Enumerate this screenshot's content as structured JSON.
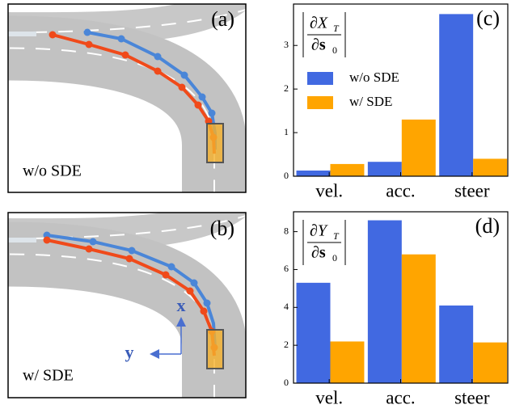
{
  "panels": [
    {
      "label": "(a)",
      "caption": "w/o SDE"
    },
    {
      "label": "(b)",
      "caption": "w/ SDE",
      "axis_x": "x",
      "axis_y": "y"
    }
  ],
  "chart_data": [
    {
      "type": "bar",
      "panel_label": "(c)",
      "ylabel": {
        "num": "∂X",
        "num_sub": "T",
        "den": "∂s",
        "den_sub": "0"
      },
      "categories": [
        "vel.",
        "acc.",
        "steer"
      ],
      "series": [
        {
          "name": "w/o SDE",
          "color": "#4169e1",
          "values": [
            0.13,
            0.33,
            3.72
          ]
        },
        {
          "name": "w/ SDE",
          "color": "#ffa500",
          "values": [
            0.28,
            1.3,
            0.4
          ]
        }
      ],
      "ylim": [
        0,
        3.95
      ],
      "yticks": [
        0,
        1,
        2,
        3
      ],
      "legend": "upper left"
    },
    {
      "type": "bar",
      "panel_label": "(d)",
      "ylabel": {
        "num": "∂Y",
        "num_sub": "T",
        "den": "∂s",
        "den_sub": "0"
      },
      "categories": [
        "vel.",
        "acc.",
        "steer"
      ],
      "series": [
        {
          "name": "w/o SDE",
          "color": "#4169e1",
          "values": [
            5.3,
            8.6,
            4.1
          ]
        },
        {
          "name": "w/ SDE",
          "color": "#ffa500",
          "values": [
            2.2,
            6.8,
            2.15
          ]
        }
      ],
      "ylim": [
        0,
        9.05
      ],
      "yticks": [
        0,
        2,
        4,
        6,
        8
      ]
    }
  ]
}
